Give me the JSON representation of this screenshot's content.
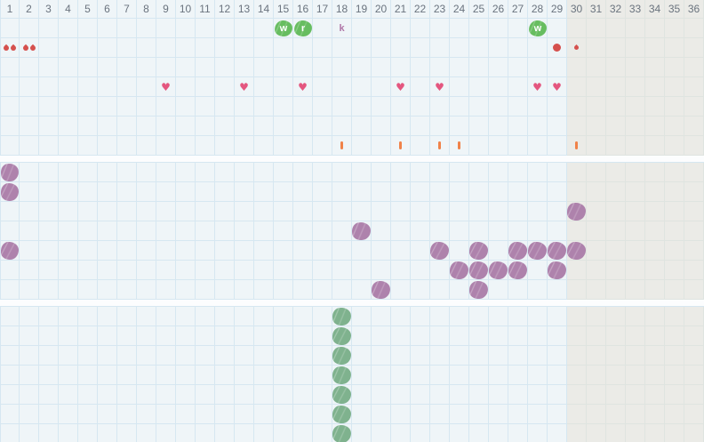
{
  "colors": {
    "cell_bg": "#eff5f8",
    "cell_bg_inactive": "#ebebe7",
    "grid_line": "#d6e7f1",
    "grid_line_inactive": "#dfe4e0",
    "header_text": "#6a737e",
    "badge_green": "#67bd60",
    "badge_text": "#ffffff",
    "letter_plain": "#b077a8",
    "flow_red": "#d5504d",
    "heart_pink": "#e4567f",
    "mark_orange": "#f08249",
    "sticker_purple": "#ae82ac",
    "sticker_green": "#7fb28e"
  },
  "grid": {
    "num_days": 36,
    "inactive_from_day": 30,
    "day_labels": [
      "1",
      "2",
      "3",
      "4",
      "5",
      "6",
      "7",
      "8",
      "9",
      "10",
      "11",
      "12",
      "13",
      "14",
      "15",
      "16",
      "17",
      "18",
      "19",
      "20",
      "21",
      "22",
      "23",
      "24",
      "25",
      "26",
      "27",
      "28",
      "29",
      "30",
      "31",
      "32",
      "33",
      "34",
      "35",
      "36"
    ]
  },
  "icons": {
    "heart": "♥"
  },
  "bands": [
    {
      "name": "events",
      "rows": [
        {
          "name": "notes",
          "cells": [
            {
              "day": 15,
              "type": "badge-letter",
              "label": "w"
            },
            {
              "day": 16,
              "type": "badge-letter",
              "label": "r"
            },
            {
              "day": 18,
              "type": "plain-letter",
              "label": "k"
            },
            {
              "day": 28,
              "type": "badge-letter",
              "label": "w"
            }
          ]
        },
        {
          "name": "flow",
          "cells": [
            {
              "day": 1,
              "type": "two-drops"
            },
            {
              "day": 2,
              "type": "two-drops"
            },
            {
              "day": 29,
              "type": "dot"
            },
            {
              "day": 30,
              "type": "one-drop"
            }
          ]
        },
        {
          "name": "empty-1",
          "cells": []
        },
        {
          "name": "intimacy",
          "cells": [
            {
              "day": 9,
              "type": "heart"
            },
            {
              "day": 13,
              "type": "heart"
            },
            {
              "day": 16,
              "type": "heart"
            },
            {
              "day": 21,
              "type": "heart"
            },
            {
              "day": 23,
              "type": "heart"
            },
            {
              "day": 28,
              "type": "heart"
            },
            {
              "day": 29,
              "type": "heart"
            }
          ]
        },
        {
          "name": "empty-2",
          "cells": []
        },
        {
          "name": "empty-3",
          "cells": []
        },
        {
          "name": "marks",
          "cells": [
            {
              "day": 18,
              "type": "bar"
            },
            {
              "day": 21,
              "type": "bar"
            },
            {
              "day": 23,
              "type": "bar"
            },
            {
              "day": 24,
              "type": "bar"
            },
            {
              "day": 30,
              "type": "bar"
            }
          ]
        }
      ]
    },
    {
      "name": "stickers-purple",
      "sticker_color": "purple",
      "rows": [
        {
          "name": "row-1",
          "cells": [
            {
              "day": 1,
              "type": "sticker"
            }
          ]
        },
        {
          "name": "row-2",
          "cells": [
            {
              "day": 1,
              "type": "sticker"
            }
          ]
        },
        {
          "name": "row-3",
          "cells": [
            {
              "day": 30,
              "type": "sticker"
            }
          ]
        },
        {
          "name": "row-4",
          "cells": [
            {
              "day": 19,
              "type": "sticker"
            }
          ]
        },
        {
          "name": "row-5",
          "cells": [
            {
              "day": 1,
              "type": "sticker"
            },
            {
              "day": 23,
              "type": "sticker"
            },
            {
              "day": 25,
              "type": "sticker"
            },
            {
              "day": 27,
              "type": "sticker"
            },
            {
              "day": 28,
              "type": "sticker"
            },
            {
              "day": 29,
              "type": "sticker"
            },
            {
              "day": 30,
              "type": "sticker"
            }
          ]
        },
        {
          "name": "row-6",
          "cells": [
            {
              "day": 24,
              "type": "sticker"
            },
            {
              "day": 25,
              "type": "sticker"
            },
            {
              "day": 26,
              "type": "sticker"
            },
            {
              "day": 27,
              "type": "sticker"
            },
            {
              "day": 29,
              "type": "sticker"
            }
          ]
        },
        {
          "name": "row-7",
          "cells": [
            {
              "day": 20,
              "type": "sticker"
            },
            {
              "day": 25,
              "type": "sticker"
            }
          ]
        }
      ]
    },
    {
      "name": "stickers-green",
      "sticker_color": "green",
      "rows": [
        {
          "name": "row-1",
          "cells": [
            {
              "day": 18,
              "type": "sticker"
            }
          ]
        },
        {
          "name": "row-2",
          "cells": [
            {
              "day": 18,
              "type": "sticker"
            }
          ]
        },
        {
          "name": "row-3",
          "cells": [
            {
              "day": 18,
              "type": "sticker"
            }
          ]
        },
        {
          "name": "row-4",
          "cells": [
            {
              "day": 18,
              "type": "sticker"
            }
          ]
        },
        {
          "name": "row-5",
          "cells": [
            {
              "day": 18,
              "type": "sticker"
            }
          ]
        },
        {
          "name": "row-6",
          "cells": [
            {
              "day": 18,
              "type": "sticker"
            }
          ]
        },
        {
          "name": "row-7",
          "cells": [
            {
              "day": 18,
              "type": "sticker"
            }
          ]
        }
      ]
    }
  ]
}
